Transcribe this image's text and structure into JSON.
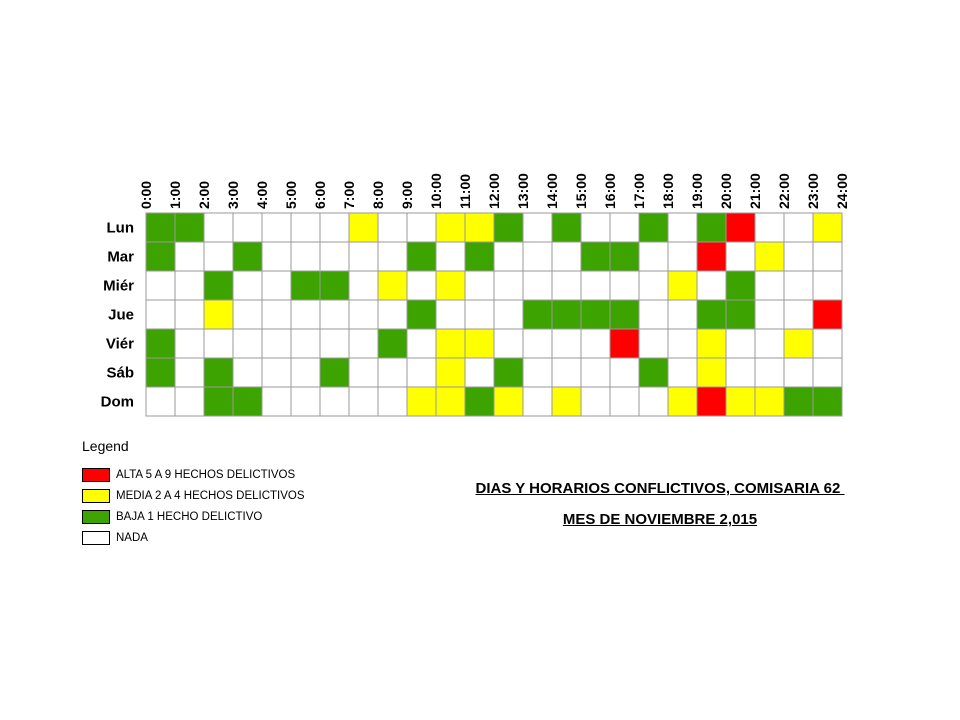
{
  "title_lines": [
    "DIAS Y HORARIOS CONFLICTIVOS, COMISARIA 62 ",
    "MES DE NOVIEMBRE 2,015"
  ],
  "legend": {
    "title": "Legend",
    "items": [
      {
        "label": "ALTA 5 A 9 HECHOS DELICTIVOS",
        "color": "#ff0000"
      },
      {
        "label": "MEDIA 2 A 4 HECHOS DELICTIVOS",
        "color": "#ffff00"
      },
      {
        "label": "BAJA 1 HECHO DELICTIVO",
        "color": "#3ca300"
      },
      {
        "label": "NADA",
        "color": "#ffffff"
      }
    ]
  },
  "chart_data": {
    "type": "heatmap",
    "title": "DIAS Y HORARIOS CONFLICTIVOS, COMISARIA 62 MES DE NOVIEMBRE 2,015",
    "x_tick_labels": [
      "0:00",
      "1:00",
      "2:00",
      "3:00",
      "4:00",
      "5:00",
      "6:00",
      "7:00",
      "8:00",
      "9:00",
      "10:00",
      "11:00",
      "12:00",
      "13:00",
      "14:00",
      "15:00",
      "16:00",
      "17:00",
      "18:00",
      "19:00",
      "20:00",
      "21:00",
      "22:00",
      "23:00",
      "24:00"
    ],
    "rows": [
      "Lun",
      "Mar",
      "Miér",
      "Jue",
      "Viér",
      "Sáb",
      "Dom"
    ],
    "levels": {
      "0": "NADA",
      "1": "BAJA 1 HECHO DELICTIVO",
      "2": "MEDIA 2 A 4 HECHOS DELICTIVOS",
      "3": "ALTA 5 A 9 HECHOS DELICTIVOS"
    },
    "level_colors": [
      "#ffffff",
      "#3ca300",
      "#ffff00",
      "#ff0000"
    ],
    "values": [
      [
        1,
        1,
        0,
        0,
        0,
        0,
        0,
        2,
        0,
        0,
        2,
        2,
        1,
        0,
        1,
        0,
        0,
        1,
        0,
        1,
        3,
        0,
        0,
        2
      ],
      [
        1,
        0,
        0,
        1,
        0,
        0,
        0,
        0,
        0,
        1,
        0,
        1,
        0,
        0,
        0,
        1,
        1,
        0,
        0,
        3,
        0,
        2,
        0,
        0
      ],
      [
        0,
        0,
        1,
        0,
        0,
        1,
        1,
        0,
        2,
        0,
        2,
        0,
        0,
        0,
        0,
        0,
        0,
        0,
        2,
        0,
        1,
        0,
        0,
        0
      ],
      [
        0,
        0,
        2,
        0,
        0,
        0,
        0,
        0,
        0,
        1,
        0,
        0,
        0,
        1,
        1,
        1,
        1,
        0,
        0,
        1,
        1,
        0,
        0,
        3
      ],
      [
        1,
        0,
        0,
        0,
        0,
        0,
        0,
        0,
        1,
        0,
        2,
        2,
        0,
        0,
        0,
        0,
        3,
        0,
        0,
        2,
        0,
        0,
        2,
        0
      ],
      [
        1,
        0,
        1,
        0,
        0,
        0,
        1,
        0,
        0,
        0,
        2,
        0,
        1,
        0,
        0,
        0,
        0,
        1,
        0,
        2,
        0,
        0,
        0,
        0
      ],
      [
        0,
        0,
        1,
        1,
        0,
        0,
        0,
        0,
        0,
        2,
        2,
        1,
        2,
        0,
        2,
        0,
        0,
        0,
        2,
        3,
        2,
        2,
        1,
        1
      ]
    ],
    "legend_position": "bottom-left",
    "grid": true
  }
}
